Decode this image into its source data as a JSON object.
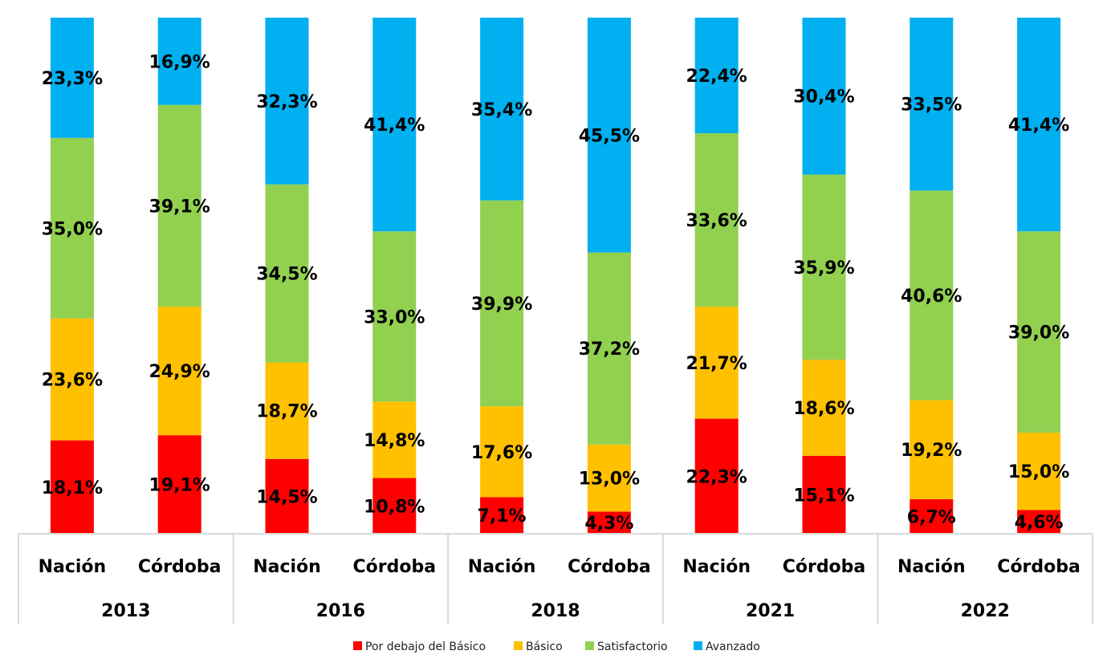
{
  "chart_data": {
    "type": "bar",
    "stacked": true,
    "title": "",
    "xlabel": "",
    "ylabel": "",
    "ylim": [
      0,
      100
    ],
    "grid": false,
    "legend_position": "bottom",
    "groups": [
      {
        "label": "2013",
        "categories": [
          "Nación",
          "Córdoba"
        ]
      },
      {
        "label": "2016",
        "categories": [
          "Nación",
          "Córdoba"
        ]
      },
      {
        "label": "2018",
        "categories": [
          "Nación",
          "Córdoba"
        ]
      },
      {
        "label": "2021",
        "categories": [
          "Nación",
          "Córdoba"
        ]
      },
      {
        "label": "2022",
        "categories": [
          "Nación",
          "Córdoba"
        ]
      }
    ],
    "series": [
      {
        "name": "Por debajo del Básico",
        "color": "#FF0000",
        "values": [
          18.1,
          19.1,
          14.5,
          10.8,
          7.1,
          4.3,
          22.3,
          15.1,
          6.7,
          4.6
        ],
        "labels": [
          "18,1%",
          "19,1%",
          "14,5%",
          "10,8%",
          "7,1%",
          "4,3%",
          "22,3%",
          "15,1%",
          "6,7%",
          "4,6%"
        ]
      },
      {
        "name": "Básico",
        "color": "#FFC000",
        "values": [
          23.6,
          24.9,
          18.7,
          14.8,
          17.6,
          13.0,
          21.7,
          18.6,
          19.2,
          15.0
        ],
        "labels": [
          "23,6%",
          "24,9%",
          "18,7%",
          "14,8%",
          "17,6%",
          "13,0%",
          "21,7%",
          "18,6%",
          "19,2%",
          "15,0%"
        ]
      },
      {
        "name": "Satisfactorio",
        "color": "#92D050",
        "values": [
          35.0,
          39.1,
          34.5,
          33.0,
          39.9,
          37.2,
          33.6,
          35.9,
          40.6,
          39.0
        ],
        "labels": [
          "35,0%",
          "39,1%",
          "34,5%",
          "33,0%",
          "39,9%",
          "37,2%",
          "33,6%",
          "35,9%",
          "40,6%",
          "39,0%"
        ]
      },
      {
        "name": "Avanzado",
        "color": "#00B0F0",
        "values": [
          23.3,
          16.9,
          32.3,
          41.4,
          35.4,
          45.5,
          22.4,
          30.4,
          33.5,
          41.4
        ],
        "labels": [
          "23,3%",
          "16,9%",
          "32,3%",
          "41,4%",
          "35,4%",
          "45,5%",
          "22,4%",
          "30,4%",
          "33,5%",
          "41,4%"
        ]
      }
    ]
  }
}
